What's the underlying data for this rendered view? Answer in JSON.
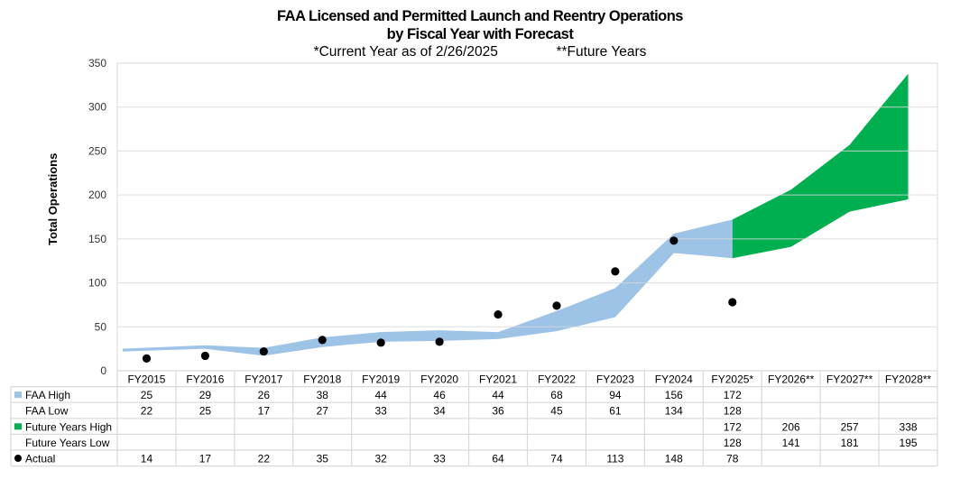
{
  "chart_data": {
    "type": "area",
    "title": "FAA Licensed and Permitted Launch and Reentry Operations",
    "subtitle": "by Fiscal Year with Forecast",
    "notes": [
      "*Current Year as of 2/26/2025",
      "**Future Years"
    ],
    "xlabel": "",
    "ylabel": "Total Operations",
    "ylim": [
      0,
      350
    ],
    "yticks": [
      0,
      50,
      100,
      150,
      200,
      250,
      300,
      350
    ],
    "grid": true,
    "legend": "data-table",
    "categories": [
      "FY2015",
      "FY2016",
      "FY2017",
      "FY2018",
      "FY2019",
      "FY2020",
      "FY2021",
      "FY2022",
      "FY2023",
      "FY2024",
      "FY2025*",
      "FY2026**",
      "FY2027**",
      "FY2028**"
    ],
    "series": [
      {
        "name": "FAA High",
        "kind": "band-high",
        "color": "#9dc3e6",
        "values": [
          25,
          29,
          26,
          38,
          44,
          46,
          44,
          68,
          94,
          156,
          172,
          null,
          null,
          null
        ]
      },
      {
        "name": "FAA Low",
        "kind": "band-low",
        "color": "#9dc3e6",
        "values": [
          22,
          25,
          17,
          27,
          33,
          34,
          36,
          45,
          61,
          134,
          128,
          null,
          null,
          null
        ]
      },
      {
        "name": "Future Years High",
        "kind": "band-high",
        "color": "#00b050",
        "values": [
          null,
          null,
          null,
          null,
          null,
          null,
          null,
          null,
          null,
          null,
          172,
          206,
          257,
          338
        ]
      },
      {
        "name": "Future Years Low",
        "kind": "band-low",
        "color": "#00b050",
        "values": [
          null,
          null,
          null,
          null,
          null,
          null,
          null,
          null,
          null,
          null,
          128,
          141,
          181,
          195
        ]
      },
      {
        "name": "Actual",
        "kind": "scatter",
        "color": "#000000",
        "values": [
          14,
          17,
          22,
          35,
          32,
          33,
          64,
          74,
          113,
          148,
          78,
          null,
          null,
          null
        ]
      }
    ]
  }
}
